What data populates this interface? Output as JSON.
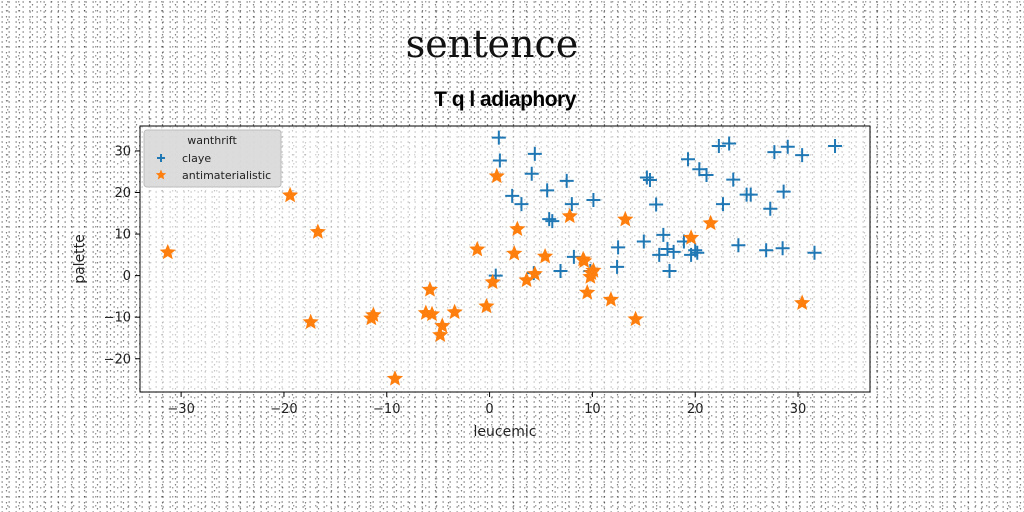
{
  "suptitle": "sentence",
  "chart_data": {
    "type": "scatter",
    "title": "T q l adiaphory",
    "xlabel": "leucemic",
    "ylabel": "palette",
    "xlim": [
      -34,
      37
    ],
    "ylim": [
      -28,
      36
    ],
    "xticks": [
      -30,
      -20,
      -10,
      0,
      10,
      20,
      30
    ],
    "yticks": [
      -20,
      -10,
      0,
      10,
      20,
      30
    ],
    "grid": false,
    "legend": {
      "title": "wanthrift",
      "placement": "top-left"
    },
    "series": [
      {
        "name": "claye",
        "marker": "plus",
        "color": "#1f77b4",
        "points": [
          [
            0.9,
            33.2
          ],
          [
            1,
            27.7
          ],
          [
            2.2,
            19.2
          ],
          [
            3.1,
            17.2
          ],
          [
            4.1,
            24.5
          ],
          [
            4.4,
            29.3
          ],
          [
            5.6,
            20.5
          ],
          [
            5.8,
            13.6
          ],
          [
            6.1,
            13.1
          ],
          [
            7.5,
            22.8
          ],
          [
            8,
            17.2
          ],
          [
            10.1,
            18.2
          ],
          [
            6.9,
            1.1
          ],
          [
            8.2,
            4.5
          ],
          [
            12.4,
            2.1
          ],
          [
            12.5,
            6.8
          ],
          [
            15,
            8.2
          ],
          [
            15.3,
            23.6
          ],
          [
            15.6,
            23
          ],
          [
            16.2,
            17.1
          ],
          [
            16.5,
            5
          ],
          [
            16.9,
            9.8
          ],
          [
            17.3,
            6.4
          ],
          [
            17.5,
            1.1
          ],
          [
            17.9,
            5.7
          ],
          [
            18.9,
            8.2
          ],
          [
            19.3,
            28
          ],
          [
            19.6,
            5
          ],
          [
            20,
            6.1
          ],
          [
            20.2,
            5.5
          ],
          [
            20.4,
            25.6
          ],
          [
            21.1,
            24.2
          ],
          [
            22.3,
            31.2
          ],
          [
            22.7,
            17.2
          ],
          [
            23.3,
            31.8
          ],
          [
            23.7,
            23.1
          ],
          [
            24.2,
            7.3
          ],
          [
            25,
            19.5
          ],
          [
            25.4,
            19.5
          ],
          [
            26.9,
            6.1
          ],
          [
            27.3,
            16.1
          ],
          [
            27.7,
            29.7
          ],
          [
            28.5,
            6.6
          ],
          [
            28.6,
            20.2
          ],
          [
            29,
            31
          ],
          [
            30.4,
            29
          ],
          [
            31.6,
            5.5
          ],
          [
            33.6,
            31.2
          ],
          [
            4.3,
            0.6
          ],
          [
            9.8,
            1.1
          ],
          [
            0.6,
            0
          ]
        ]
      },
      {
        "name": "antimaterialistic",
        "marker": "star",
        "color": "#ff7f0e",
        "points": [
          [
            -31.3,
            5.6
          ],
          [
            -19.4,
            19.3
          ],
          [
            -16.7,
            10.5
          ],
          [
            -17.4,
            -11.2
          ],
          [
            -11.3,
            -9.5
          ],
          [
            -11.5,
            -10.3
          ],
          [
            -9.2,
            -24.8
          ],
          [
            -6.2,
            -9
          ],
          [
            -5.6,
            -9.3
          ],
          [
            -5.8,
            -3.4
          ],
          [
            -4.8,
            -14.3
          ],
          [
            -4.6,
            -12.1
          ],
          [
            -3.4,
            -8.8
          ],
          [
            -0.3,
            -7.4
          ],
          [
            0.3,
            -1.6
          ],
          [
            0.7,
            23.9
          ],
          [
            -1.2,
            6.3
          ],
          [
            2.4,
            5.3
          ],
          [
            2.7,
            11.2
          ],
          [
            3.6,
            -1.1
          ],
          [
            4.4,
            0.4
          ],
          [
            5.4,
            4.6
          ],
          [
            7.8,
            14.3
          ],
          [
            9.2,
            3.5
          ],
          [
            9.5,
            -4.1
          ],
          [
            9.8,
            -0.3
          ],
          [
            10.1,
            1.2
          ],
          [
            11.8,
            -5.8
          ],
          [
            13.2,
            13.5
          ],
          [
            14.2,
            -10.5
          ],
          [
            19.6,
            9.1
          ],
          [
            21.5,
            12.6
          ],
          [
            30.4,
            -6.6
          ],
          [
            9.9,
            0.6
          ],
          [
            9.1,
            3.9
          ]
        ]
      }
    ]
  }
}
